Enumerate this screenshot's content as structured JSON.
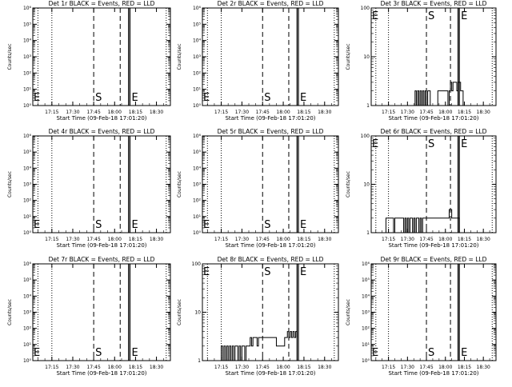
{
  "figure": {
    "xlabel": "Start Time (09-Feb-18 17:01:20)",
    "ylabel": "Counts/sec",
    "x_ticks": [
      "17:15",
      "17:30",
      "17:45",
      "18:00",
      "18:15",
      "18:30"
    ],
    "markers": {
      "start": "S",
      "end": "E"
    },
    "colors": {
      "events": "#000000",
      "lld": "#ff0000",
      "background": "#ffffff"
    }
  },
  "chart_data": [
    {
      "type": "line",
      "title": "Det 1r BLACK = Events, RED = LLD",
      "yscale": "log",
      "ylim": [
        1,
        1000000
      ],
      "ylabel": "Counts/sec",
      "y_ticks": [
        "10⁰",
        "10¹",
        "10²",
        "10³",
        "10⁴",
        "10⁵",
        "10⁶"
      ],
      "x_ticks": [
        "17:15",
        "17:30",
        "17:45",
        "18:00",
        "18:15",
        "18:30"
      ],
      "xlim": [
        "17:01:20",
        "18:40"
      ],
      "dotted_lines": [
        "17:05",
        "17:15",
        "18:37"
      ],
      "dashed_lines": [
        "17:45",
        "18:04"
      ],
      "solid_lines": [
        "18:10",
        "18:11"
      ],
      "series": []
    },
    {
      "type": "line",
      "title": "Det 2r BLACK = Events, RED = LLD",
      "yscale": "log",
      "ylim": [
        1,
        1000000
      ],
      "ylabel": "Counts/sec",
      "y_ticks": [
        "10⁰",
        "10¹",
        "10²",
        "10³",
        "10⁴",
        "10⁵",
        "10⁶"
      ],
      "x_ticks": [
        "17:15",
        "17:30",
        "17:45",
        "18:00",
        "18:15",
        "18:30"
      ],
      "xlim": [
        "17:01:20",
        "18:40"
      ],
      "dotted_lines": [
        "17:05",
        "17:15",
        "18:37"
      ],
      "dashed_lines": [
        "17:45",
        "18:04"
      ],
      "solid_lines": [
        "18:10",
        "18:11"
      ],
      "series": []
    },
    {
      "type": "line",
      "title": "Det 3r BLACK = Events, RED = LLD",
      "yscale": "log",
      "ylim": [
        1,
        100
      ],
      "ylabel": "Counts/sec",
      "y_ticks": [
        "1",
        "10",
        "100"
      ],
      "x_ticks": [
        "17:15",
        "17:30",
        "17:45",
        "18:00",
        "18:15",
        "18:30"
      ],
      "xlim": [
        "17:01:20",
        "18:40"
      ],
      "dotted_lines": [
        "17:05",
        "17:15",
        "18:37"
      ],
      "dashed_lines": [
        "17:45",
        "18:04"
      ],
      "solid_lines": [
        "18:10",
        "18:11"
      ],
      "series": [
        {
          "x": [
            "17:35",
            "17:36",
            "17:37",
            "17:38",
            "17:39",
            "17:40",
            "17:41",
            "17:42",
            "17:43",
            "17:44",
            "17:45",
            "17:46",
            "17:47",
            "17:48",
            "17:53",
            "17:54",
            "18:02",
            "18:03",
            "18:04",
            "18:05",
            "18:06",
            "18:07",
            "18:08",
            "18:09",
            "18:10",
            "18:11",
            "18:12",
            "18:13",
            "18:14"
          ],
          "y": [
            1,
            2,
            1,
            2,
            1,
            2,
            1,
            2,
            1,
            2,
            1,
            2,
            2,
            1,
            1,
            2,
            1,
            2,
            3,
            2,
            3,
            3,
            3,
            2,
            3,
            3,
            2,
            2,
            1
          ]
        }
      ]
    },
    {
      "type": "line",
      "title": "Det 4r BLACK = Events, RED = LLD",
      "yscale": "log",
      "ylim": [
        1,
        1000000
      ],
      "ylabel": "Counts/sec",
      "y_ticks": [
        "10⁰",
        "10¹",
        "10²",
        "10³",
        "10⁴",
        "10⁵",
        "10⁶"
      ],
      "x_ticks": [
        "17:15",
        "17:30",
        "17:45",
        "18:00",
        "18:15",
        "18:30"
      ],
      "xlim": [
        "17:01:20",
        "18:40"
      ],
      "dotted_lines": [
        "17:05",
        "17:15",
        "18:37"
      ],
      "dashed_lines": [
        "17:45",
        "18:04"
      ],
      "solid_lines": [
        "18:10",
        "18:11"
      ],
      "series": []
    },
    {
      "type": "line",
      "title": "Det 5r BLACK = Events, RED = LLD",
      "yscale": "log",
      "ylim": [
        1,
        1000000
      ],
      "ylabel": "Counts/sec",
      "y_ticks": [
        "10⁰",
        "10¹",
        "10²",
        "10³",
        "10⁴",
        "10⁵",
        "10⁶"
      ],
      "x_ticks": [
        "17:15",
        "17:30",
        "17:45",
        "18:00",
        "18:15",
        "18:30"
      ],
      "xlim": [
        "17:01:20",
        "18:40"
      ],
      "dotted_lines": [
        "17:05",
        "17:15",
        "18:37"
      ],
      "dashed_lines": [
        "17:45",
        "18:04"
      ],
      "solid_lines": [
        "18:10",
        "18:11"
      ],
      "series": []
    },
    {
      "type": "line",
      "title": "Det 6r BLACK = Events, RED = LLD",
      "yscale": "log",
      "ylim": [
        1,
        100
      ],
      "ylabel": "Counts/sec",
      "y_ticks": [
        "1",
        "10",
        "100"
      ],
      "x_ticks": [
        "17:15",
        "17:30",
        "17:45",
        "18:00",
        "18:15",
        "18:30"
      ],
      "xlim": [
        "17:01:20",
        "18:40"
      ],
      "dotted_lines": [
        "17:05",
        "17:15",
        "18:37"
      ],
      "dashed_lines": [
        "17:45",
        "18:04"
      ],
      "solid_lines": [
        "18:10",
        "18:11"
      ],
      "series": [
        {
          "x": [
            "17:12",
            "17:13",
            "17:19",
            "17:20",
            "17:26",
            "17:27",
            "17:28",
            "17:29",
            "17:30",
            "17:31",
            "17:32",
            "17:33",
            "17:34",
            "17:35",
            "17:36",
            "17:37",
            "17:38",
            "17:39",
            "17:40",
            "17:41",
            "17:42",
            "17:43",
            "17:44",
            "17:45",
            "18:02",
            "18:03",
            "18:04",
            "18:05",
            "18:06",
            "18:07",
            "18:08",
            "18:09",
            "18:10",
            "18:11"
          ],
          "y": [
            1,
            2,
            1,
            2,
            2,
            1,
            2,
            1,
            2,
            1,
            2,
            2,
            1,
            2,
            1,
            2,
            2,
            1,
            2,
            1,
            2,
            2,
            2,
            2,
            2,
            3,
            3,
            2,
            2,
            2,
            2,
            2,
            2,
            1
          ]
        }
      ]
    },
    {
      "type": "line",
      "title": "Det 7r BLACK = Events, RED = LLD",
      "yscale": "log",
      "ylim": [
        1,
        1000000
      ],
      "ylabel": "Counts/sec",
      "y_ticks": [
        "10⁰",
        "10¹",
        "10²",
        "10³",
        "10⁴",
        "10⁵",
        "10⁶"
      ],
      "x_ticks": [
        "17:15",
        "17:30",
        "17:45",
        "18:00",
        "18:15",
        "18:30"
      ],
      "xlim": [
        "17:01:20",
        "18:40"
      ],
      "dotted_lines": [
        "17:05",
        "17:15",
        "18:37"
      ],
      "dashed_lines": [
        "17:45",
        "18:04"
      ],
      "solid_lines": [
        "18:10",
        "18:11"
      ],
      "series": []
    },
    {
      "type": "line",
      "title": "Det 8r BLACK = Events, RED = LLD",
      "yscale": "log",
      "ylim": [
        1,
        100
      ],
      "ylabel": "Counts/sec",
      "y_ticks": [
        "1",
        "10",
        "100"
      ],
      "x_ticks": [
        "17:15",
        "17:30",
        "17:45",
        "18:00",
        "18:15",
        "18:30"
      ],
      "xlim": [
        "17:01:20",
        "18:40"
      ],
      "dotted_lines": [
        "17:05",
        "17:15",
        "18:37"
      ],
      "dashed_lines": [
        "17:45",
        "18:04"
      ],
      "solid_lines": [
        "18:10",
        "18:11"
      ],
      "series": [
        {
          "x": [
            "17:01:20",
            "17:15",
            "17:16",
            "17:17",
            "17:18",
            "17:19",
            "17:20",
            "17:21",
            "17:22",
            "17:23",
            "17:24",
            "17:25",
            "17:26",
            "17:27",
            "17:28",
            "17:29",
            "17:30",
            "17:31",
            "17:32",
            "17:33",
            "17:34",
            "17:35",
            "17:36",
            "17:37",
            "17:38",
            "17:39",
            "17:40",
            "17:41",
            "17:42",
            "17:43",
            "17:44",
            "17:45",
            "17:55",
            "17:56",
            "17:57",
            "18:01",
            "18:02",
            "18:03",
            "18:04",
            "18:05",
            "18:06",
            "18:07",
            "18:08",
            "18:09",
            "18:10"
          ],
          "y": [
            1,
            2,
            1,
            2,
            1,
            2,
            1,
            2,
            1,
            2,
            1,
            2,
            2,
            1,
            2,
            1,
            2,
            2,
            1,
            2,
            2,
            2,
            3,
            2,
            3,
            3,
            3,
            2,
            3,
            3,
            3,
            3,
            2,
            2,
            2,
            3,
            3,
            4,
            3,
            4,
            3,
            4,
            3,
            4,
            3
          ]
        }
      ]
    },
    {
      "type": "line",
      "title": "Det 9r BLACK = Events, RED = LLD",
      "yscale": "log",
      "ylim": [
        1,
        1000000
      ],
      "ylabel": "Counts/sec",
      "y_ticks": [
        "10⁰",
        "10¹",
        "10²",
        "10³",
        "10⁴",
        "10⁵",
        "10⁶"
      ],
      "x_ticks": [
        "17:15",
        "17:30",
        "17:45",
        "18:00",
        "18:15",
        "18:30"
      ],
      "xlim": [
        "17:01:20",
        "18:40"
      ],
      "dotted_lines": [
        "17:05",
        "17:15",
        "18:37"
      ],
      "dashed_lines": [
        "17:45",
        "18:04"
      ],
      "solid_lines": [
        "18:10",
        "18:11"
      ],
      "series": []
    }
  ]
}
